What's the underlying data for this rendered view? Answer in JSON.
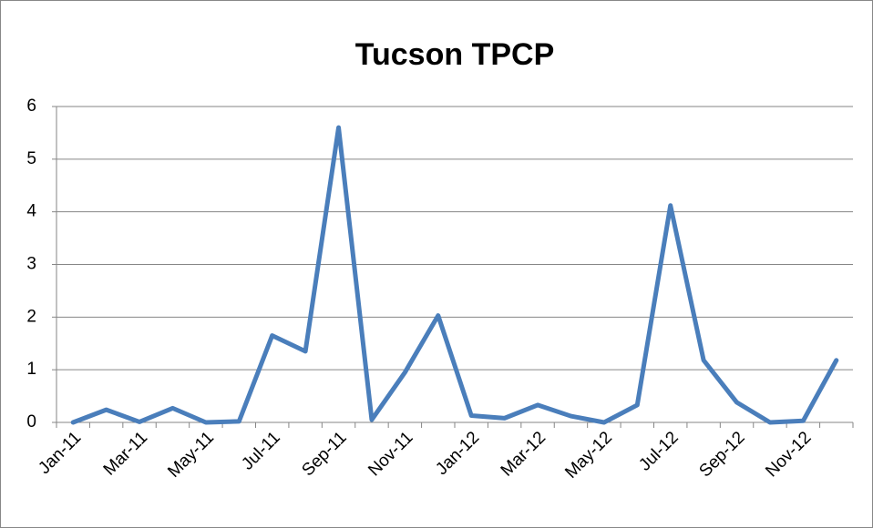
{
  "chart_data": {
    "type": "line",
    "title": "Tucson TPCP",
    "categories": [
      "Jan-11",
      null,
      "Mar-11",
      null,
      "May-11",
      null,
      "Jul-11",
      null,
      "Sep-11",
      null,
      "Nov-11",
      null,
      "Jan-12",
      null,
      "Mar-12",
      null,
      "May-12",
      null,
      "Jul-12",
      null,
      "Sep-12",
      null,
      "Nov-12",
      null
    ],
    "series": [
      {
        "name": "TPCP",
        "color": "#4a7ebb",
        "values": [
          0,
          0.24,
          0.01,
          0.27,
          0,
          0.02,
          1.65,
          1.35,
          5.6,
          0.05,
          0.95,
          2.03,
          0.13,
          0.08,
          0.33,
          0.12,
          0,
          0.33,
          4.12,
          1.18,
          0.38,
          0,
          0.03,
          1.18
        ]
      }
    ],
    "ylim": [
      0,
      6
    ],
    "yticks": [
      0,
      1,
      2,
      3,
      4,
      5,
      6
    ],
    "grid": true,
    "legend": false
  }
}
